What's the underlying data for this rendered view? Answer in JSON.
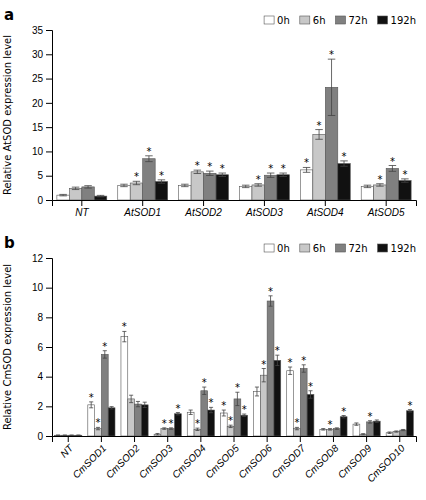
{
  "chart_data": [
    {
      "type": "bar",
      "title": "a",
      "ylabel": "Relative AtSOD expression level",
      "categories": [
        "NT",
        "AtSOD1",
        "AtSOD2",
        "AtSOD3",
        "AtSOD4",
        "AtSOD5"
      ],
      "series": [
        {
          "name": "0h",
          "color": "#ffffff",
          "values": [
            1.0,
            3.0,
            3.0,
            2.8,
            6.2,
            2.8
          ],
          "errors": [
            0.15,
            0.25,
            0.25,
            0.25,
            0.5,
            0.25
          ],
          "annotations": [
            null,
            null,
            null,
            null,
            "*",
            null
          ]
        },
        {
          "name": "6h",
          "color": "#c8c8c8",
          "values": [
            2.4,
            3.5,
            5.8,
            3.1,
            13.5,
            3.1
          ],
          "errors": [
            0.25,
            0.35,
            0.35,
            0.25,
            1.0,
            0.25
          ],
          "annotations": [
            null,
            "*",
            "*",
            "*",
            "*",
            "*"
          ]
        },
        {
          "name": "72h",
          "color": "#808080",
          "values": [
            2.7,
            8.5,
            5.5,
            5.1,
            23.2,
            6.5
          ],
          "errors": [
            0.25,
            0.6,
            0.45,
            0.45,
            5.8,
            0.6
          ],
          "annotations": [
            null,
            "*",
            "*",
            "*",
            "*",
            "*"
          ]
        },
        {
          "name": "192h",
          "color": "#111111",
          "values": [
            0.8,
            3.8,
            5.2,
            5.2,
            7.5,
            4.0
          ],
          "errors": [
            0.15,
            0.35,
            0.35,
            0.35,
            0.55,
            0.35
          ],
          "annotations": [
            null,
            "*",
            "*",
            "*",
            "*",
            "*"
          ]
        }
      ],
      "ylim": [
        0,
        35
      ],
      "yticks": [
        0,
        5,
        10,
        15,
        20,
        25,
        30,
        35
      ],
      "legend": "upper right"
    },
    {
      "type": "bar",
      "title": "b",
      "ylabel": "Relative CmSOD expression level",
      "categories": [
        "NT",
        "CmSOD1",
        "CmSOD2",
        "CmSOD3",
        "CmSOD4",
        "CmSOD5",
        "CmSOD6",
        "CmSOD7",
        "CmSOD8",
        "CmSOD9",
        "CmSOD10"
      ],
      "series": [
        {
          "name": "0h",
          "color": "#ffffff",
          "values": [
            0.05,
            2.1,
            6.7,
            0.12,
            1.6,
            1.55,
            3.0,
            4.4,
            0.45,
            0.8,
            0.22
          ],
          "errors": [
            0.02,
            0.2,
            0.35,
            0.05,
            0.15,
            0.2,
            0.3,
            0.25,
            0.05,
            0.08,
            0.05
          ],
          "annotations": [
            null,
            "*",
            "*",
            null,
            null,
            "*",
            null,
            "*",
            null,
            null,
            null
          ]
        },
        {
          "name": "6h",
          "color": "#c8c8c8",
          "values": [
            0.05,
            0.5,
            2.5,
            0.5,
            0.45,
            0.65,
            4.1,
            0.5,
            0.45,
            0.12,
            0.3
          ],
          "errors": [
            0.02,
            0.08,
            0.25,
            0.05,
            0.08,
            0.08,
            0.45,
            0.08,
            0.05,
            0.04,
            0.04
          ],
          "annotations": [
            null,
            "*",
            null,
            "*",
            "*",
            "*",
            "*",
            "*",
            "*",
            null,
            null
          ]
        },
        {
          "name": "72h",
          "color": "#808080",
          "values": [
            0.05,
            5.5,
            2.15,
            0.5,
            3.05,
            2.5,
            9.1,
            4.55,
            0.5,
            0.95,
            0.4
          ],
          "errors": [
            0.02,
            0.25,
            0.18,
            0.05,
            0.25,
            0.45,
            0.35,
            0.25,
            0.05,
            0.08,
            0.04
          ],
          "annotations": [
            null,
            "*",
            null,
            "*",
            "*",
            "*",
            "*",
            "*",
            null,
            "*",
            null
          ]
        },
        {
          "name": "192h",
          "color": "#111111",
          "values": [
            0.05,
            1.9,
            2.1,
            1.5,
            1.75,
            1.4,
            5.1,
            2.8,
            1.3,
            1.0,
            1.7
          ],
          "errors": [
            0.02,
            0.08,
            0.18,
            0.08,
            0.18,
            0.08,
            0.35,
            0.25,
            0.08,
            0.08,
            0.08
          ],
          "annotations": [
            null,
            null,
            null,
            "*",
            "*",
            "*",
            "*",
            "*",
            "*",
            null,
            "*"
          ]
        }
      ],
      "ylim": [
        0,
        12
      ],
      "yticks": [
        0,
        2,
        4,
        6,
        8,
        10,
        12
      ],
      "legend": "upper right"
    }
  ]
}
